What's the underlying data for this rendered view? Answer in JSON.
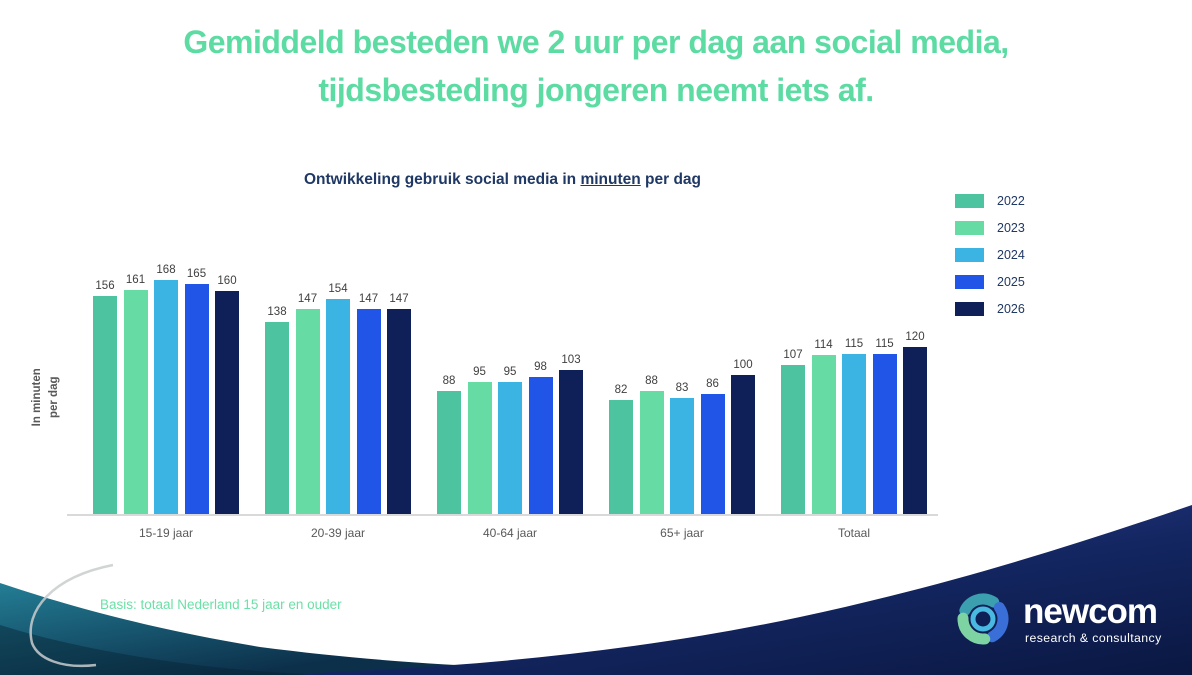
{
  "title": {
    "line1": "Gemiddeld besteden we 2 uur per dag aan social media,",
    "line2": "tijdsbesteding jongeren neemt iets af."
  },
  "chart": {
    "title_prefix": "Ontwikkeling gebruik social media in ",
    "title_underlined": "minuten",
    "title_suffix": " per dag",
    "y_axis_label_line1": "In minuten",
    "y_axis_label_line2": "per dag"
  },
  "chart_data": {
    "type": "bar",
    "title": "Ontwikkeling gebruik social media in minuten per dag",
    "xlabel": "",
    "ylabel": "In minuten per dag",
    "categories": [
      "15-19 jaar",
      "20-39 jaar",
      "40-64 jaar",
      "65+ jaar",
      "Totaal"
    ],
    "series": [
      {
        "name": "2022",
        "color": "#4DC3A0",
        "values": [
          156,
          138,
          88,
          82,
          107
        ]
      },
      {
        "name": "2023",
        "color": "#66DBA3",
        "values": [
          161,
          147,
          95,
          88,
          114
        ]
      },
      {
        "name": "2024",
        "color": "#3BB4E3",
        "values": [
          168,
          154,
          95,
          83,
          115
        ]
      },
      {
        "name": "2025",
        "color": "#2155E8",
        "values": [
          165,
          147,
          98,
          86,
          115
        ]
      },
      {
        "name": "2026",
        "color": "#0F2059",
        "values": [
          160,
          147,
          103,
          100,
          120
        ]
      }
    ],
    "ylim": [
      0,
      175
    ],
    "grid": false,
    "legend_position": "right",
    "data_labels": true
  },
  "footer": {
    "basis": "Basis: totaal Nederland 15 jaar en ouder"
  },
  "logo": {
    "name": "newcom",
    "tagline": "research & consultancy"
  },
  "colors": {
    "title_green": "#5CDBA2",
    "chart_title_navy": "#1F3864",
    "value_label_gray": "#404040",
    "axis_label_gray": "#595959",
    "axis_line_gray": "#D9D9D9",
    "footer_green": "#6BE0A6",
    "wave_teal": "#1E7E96",
    "wave_teal_dark": "#0C2F4A",
    "wave_navy_light": "#2B3D8F",
    "wave_navy_dark": "#0A1843",
    "logo_white": "#FFFFFF"
  }
}
